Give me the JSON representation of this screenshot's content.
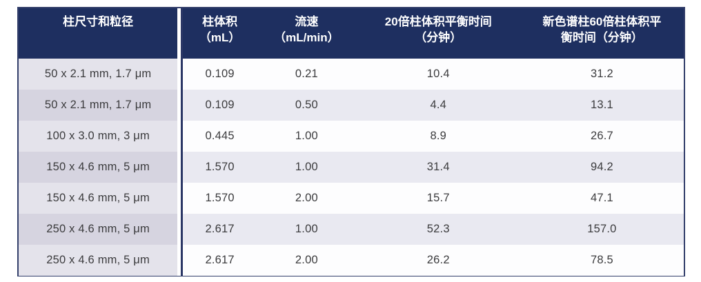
{
  "table": {
    "columns": [
      {
        "label": "柱尺寸和粒径"
      },
      {
        "label": "柱体积\n（mL）"
      },
      {
        "label": "流速\n（mL/min）"
      },
      {
        "label": "20倍柱体积平衡时间\n（分钟）"
      },
      {
        "label": "新色谱柱60倍柱体积平\n衡时间（分钟）"
      }
    ],
    "rows": [
      [
        "50 x 2.1 mm, 1.7 μm",
        "0.109",
        "0.21",
        "10.4",
        "31.2"
      ],
      [
        "50 x 2.1 mm, 1.7 μm",
        "0.109",
        "0.50",
        "4.4",
        "13.1"
      ],
      [
        "100 x 3.0 mm, 3 μm",
        "0.445",
        "1.00",
        "8.9",
        "26.7"
      ],
      [
        "150 x 4.6 mm, 5 μm",
        "1.570",
        "1.00",
        "31.4",
        "94.2"
      ],
      [
        "150 x 4.6 mm, 5 μm",
        "1.570",
        "2.00",
        "15.7",
        "47.1"
      ],
      [
        "250 x 4.6 mm, 5 μm",
        "2.617",
        "1.00",
        "52.3",
        "157.0"
      ],
      [
        "250 x 4.6 mm, 5 μm",
        "2.617",
        "2.00",
        "26.2",
        "78.5"
      ]
    ]
  },
  "colors": {
    "header_background": "#1e2f60",
    "header_text": "#ffffff",
    "first_column_odd": "#e4e3eb",
    "first_column_even": "#d6d4e0",
    "data_row_odd": "#fdfdfe",
    "data_row_even": "#e9e9f1",
    "body_text": "#3b3b3d",
    "table_border": "#333f6b"
  }
}
